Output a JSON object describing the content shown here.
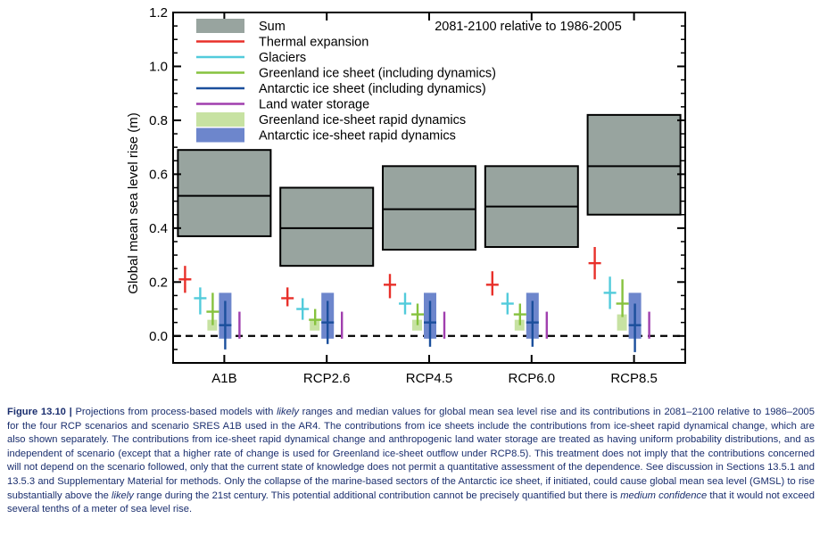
{
  "chart_data": {
    "type": "box",
    "annotation": "2081-2100 relative to 1986-2005",
    "ylabel": "Global mean sea level rise (m)",
    "ylim": [
      -0.1,
      1.2
    ],
    "yticks": [
      "0.0",
      "0.2",
      "0.4",
      "0.6",
      "0.8",
      "1.0",
      "1.2"
    ],
    "categories": [
      "A1B",
      "RCP2.6",
      "RCP4.5",
      "RCP6.0",
      "RCP8.5"
    ],
    "zero_line": "dashed",
    "legend_position": "top-left",
    "legend": [
      {
        "label": "Sum",
        "color": "#98a49f",
        "marker": "box"
      },
      {
        "label": "Thermal expansion",
        "color": "#e8302a",
        "marker": "line"
      },
      {
        "label": "Glaciers",
        "color": "#52cbdb",
        "marker": "line"
      },
      {
        "label": "Greenland ice sheet (including dynamics)",
        "color": "#86c23e",
        "marker": "line"
      },
      {
        "label": "Antarctic ice sheet (including dynamics)",
        "color": "#1b4f9c",
        "marker": "line"
      },
      {
        "label": "Land water storage",
        "color": "#a03fae",
        "marker": "line"
      },
      {
        "label": "Greenland ice-sheet rapid dynamics",
        "color": "#c7e2a2",
        "marker": "box"
      },
      {
        "label": "Antarctic ice-sheet rapid dynamics",
        "color": "#6d86cc",
        "marker": "box"
      }
    ],
    "series": [
      {
        "name": "Sum",
        "type": "range",
        "low": [
          0.37,
          0.26,
          0.32,
          0.33,
          0.45
        ],
        "median": [
          0.52,
          0.4,
          0.47,
          0.48,
          0.63
        ],
        "high": [
          0.69,
          0.55,
          0.63,
          0.63,
          0.82
        ]
      },
      {
        "name": "Thermal expansion",
        "type": "range",
        "low": [
          0.16,
          0.11,
          0.14,
          0.15,
          0.21
        ],
        "median": [
          0.21,
          0.14,
          0.19,
          0.19,
          0.27
        ],
        "high": [
          0.26,
          0.18,
          0.23,
          0.24,
          0.33
        ]
      },
      {
        "name": "Glaciers",
        "type": "range",
        "low": [
          0.08,
          0.06,
          0.08,
          0.08,
          0.1
        ],
        "median": [
          0.14,
          0.1,
          0.12,
          0.12,
          0.16
        ],
        "high": [
          0.18,
          0.14,
          0.16,
          0.16,
          0.22
        ]
      },
      {
        "name": "Greenland ice sheet (including dynamics)",
        "type": "range",
        "low": [
          0.04,
          0.04,
          0.04,
          0.04,
          0.07
        ],
        "median": [
          0.09,
          0.06,
          0.08,
          0.08,
          0.12
        ],
        "high": [
          0.16,
          0.1,
          0.12,
          0.12,
          0.21
        ]
      },
      {
        "name": "Antarctic ice sheet (including dynamics)",
        "type": "range",
        "low": [
          -0.05,
          -0.03,
          -0.04,
          -0.04,
          -0.06
        ],
        "median": [
          0.04,
          0.05,
          0.05,
          0.05,
          0.04
        ],
        "high": [
          0.13,
          0.13,
          0.13,
          0.13,
          0.12
        ]
      },
      {
        "name": "Land water storage",
        "type": "range",
        "low": [
          -0.01,
          -0.01,
          -0.01,
          -0.01,
          -0.01
        ],
        "median": [
          0.04,
          0.04,
          0.04,
          0.04,
          0.04
        ],
        "high": [
          0.09,
          0.09,
          0.09,
          0.09,
          0.09
        ]
      },
      {
        "name": "Greenland ice-sheet rapid dynamics",
        "type": "box",
        "low": [
          0.02,
          0.02,
          0.02,
          0.02,
          0.02
        ],
        "high": [
          0.06,
          0.06,
          0.06,
          0.06,
          0.08
        ]
      },
      {
        "name": "Antarctic ice-sheet rapid dynamics",
        "type": "box",
        "low": [
          -0.01,
          -0.01,
          -0.01,
          -0.01,
          -0.01
        ],
        "high": [
          0.16,
          0.16,
          0.16,
          0.16,
          0.16
        ]
      }
    ]
  },
  "caption": {
    "label": "Figure 13.10 |",
    "segments": [
      {
        "text": " Projections from process-based models with ",
        "italic": false
      },
      {
        "text": "likely",
        "italic": true
      },
      {
        "text": " ranges and median values for global mean sea level rise and its contributions in 2081–2100 relative to 1986–2005 for the four RCP scenarios and scenario SRES A1B used in the AR4. The contributions from ice sheets include the contributions from ice-sheet rapid dynamical change, which are also shown separately. The contributions from ice-sheet rapid dynamical change and anthropogenic land water storage are treated as having uniform probability distributions, and as independent of scenario (except that a higher rate of change is used for Greenland ice-sheet outflow under RCP8.5). This treatment does not imply that the contributions concerned will not depend on the scenario followed, only that the current state of knowledge does not permit a quantitative assessment of the dependence. See discussion in Sections 13.5.1 and 13.5.3 and Supplementary Material for methods. Only the collapse of the marine-based sectors of the Antarctic ice sheet, if initiated, could cause global mean sea level (GMSL) to rise substantially above the ",
        "italic": false
      },
      {
        "text": "likely",
        "italic": true
      },
      {
        "text": " range during the 21st century. This potential additional contribution cannot be precisely quantified but there is ",
        "italic": false
      },
      {
        "text": "medium confidence",
        "italic": true
      },
      {
        "text": " that it would not exceed several tenths of a meter of sea level rise.",
        "italic": false
      }
    ]
  }
}
